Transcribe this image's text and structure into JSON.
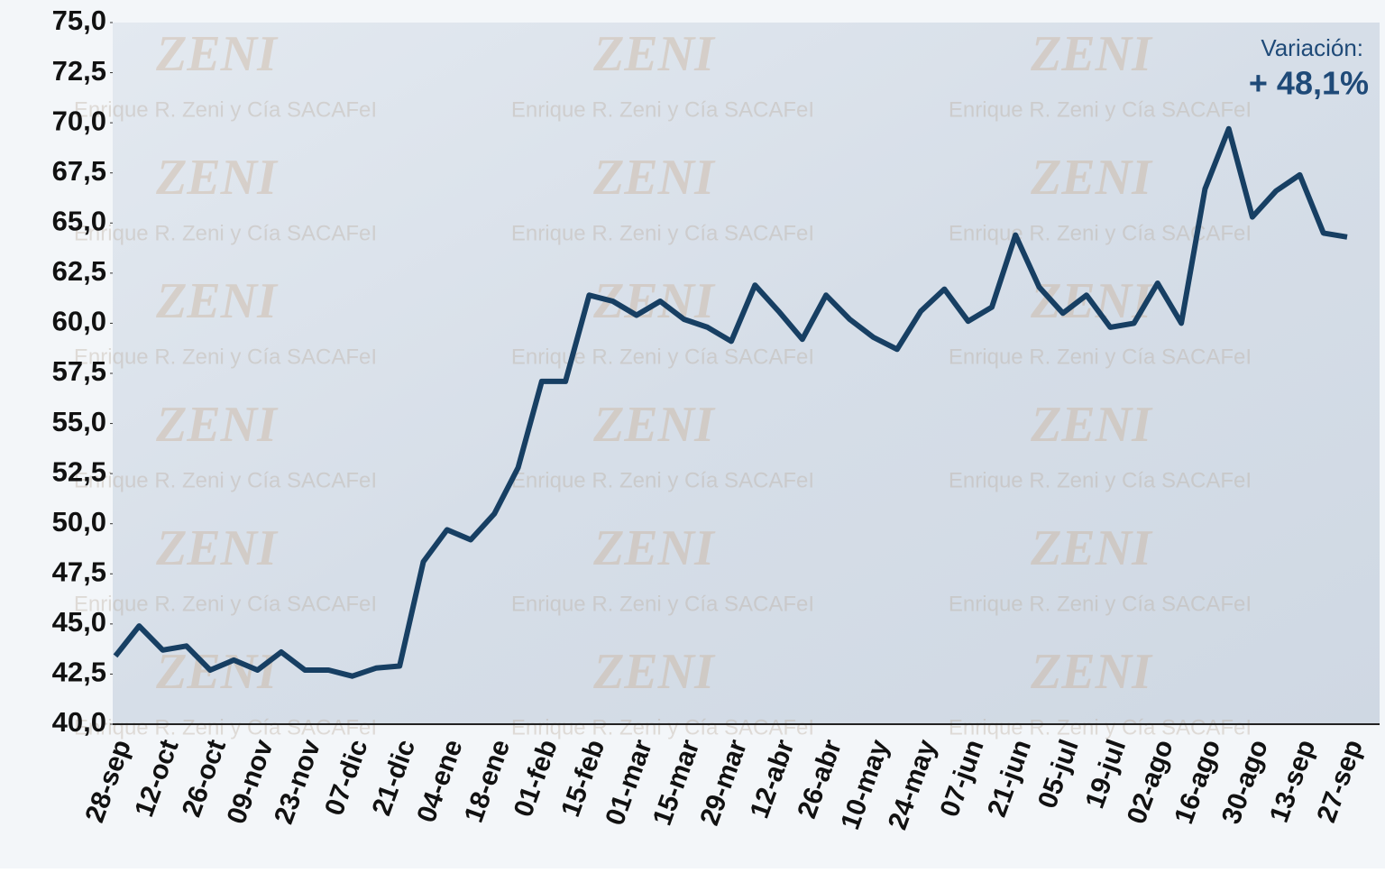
{
  "chart_data": {
    "type": "line",
    "watermark": [
      "ZENI",
      "Enrique R. Zeni y Cía SACAFeI"
    ],
    "annotations": [
      "Variación:",
      "+ 48,1%"
    ],
    "categories": [
      "28-sep",
      null,
      "12-oct",
      null,
      "26-oct",
      null,
      "09-nov",
      null,
      "23-nov",
      null,
      "07-dic",
      null,
      "21-dic",
      null,
      "04-ene",
      null,
      "18-ene",
      null,
      "01-feb",
      null,
      "15-feb",
      null,
      "01-mar",
      null,
      "15-mar",
      null,
      "29-mar",
      null,
      "12-abr",
      null,
      "26-abr",
      null,
      "10-may",
      null,
      "24-may",
      null,
      "07-jun",
      null,
      "21-jun",
      null,
      "05-jul",
      null,
      "19-jul",
      null,
      "02-ago",
      null,
      "16-ago",
      null,
      "30-ago",
      null,
      "13-sep",
      null,
      "27-sep"
    ],
    "series": [
      {
        "color": "#173f63",
        "values": [
          43.4,
          44.9,
          43.7,
          43.9,
          42.7,
          43.2,
          42.7,
          43.6,
          42.7,
          42.7,
          42.4,
          42.8,
          42.9,
          48.1,
          49.7,
          49.2,
          50.5,
          52.8,
          57.1,
          57.1,
          61.4,
          61.1,
          60.4,
          61.1,
          60.2,
          59.8,
          59.1,
          61.9,
          60.6,
          59.2,
          61.4,
          60.2,
          59.3,
          58.7,
          60.6,
          61.7,
          60.1,
          60.8,
          64.4,
          61.8,
          60.5,
          61.4,
          59.8,
          60.0,
          62.0,
          60.0,
          66.7,
          69.7,
          65.3,
          66.6,
          67.4,
          64.5,
          64.3
        ]
      }
    ],
    "ylim": [
      40,
      75
    ],
    "yticks": [
      {
        "value": 40,
        "label": "40,0"
      },
      {
        "value": 42.5,
        "label": "42,5"
      },
      {
        "value": 45,
        "label": "45,0"
      },
      {
        "value": 47.5,
        "label": "47,5"
      },
      {
        "value": 50,
        "label": "50,0"
      },
      {
        "value": 52.5,
        "label": "52,5"
      },
      {
        "value": 55,
        "label": "55,0"
      },
      {
        "value": 57.5,
        "label": "57,5"
      },
      {
        "value": 60,
        "label": "60,0"
      },
      {
        "value": 62.5,
        "label": "62,5"
      },
      {
        "value": 65,
        "label": "65,0"
      },
      {
        "value": 67.5,
        "label": "67,5"
      },
      {
        "value": 70,
        "label": "70,0"
      },
      {
        "value": 72.5,
        "label": "72,5"
      },
      {
        "value": 75,
        "label": "75,0"
      }
    ],
    "grid": false
  }
}
